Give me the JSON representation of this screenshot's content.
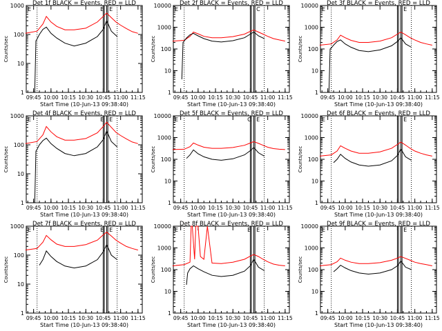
{
  "chart_data": [
    {
      "type": "line",
      "title": "Det 1f BLACK = Events, RED = LLD",
      "xlabel": "Start Time (10-Jun-13 09:38:40)",
      "ylabel": "Counts/sec",
      "yscale": "log",
      "ylim": [
        1,
        1000
      ],
      "y_ticks": [
        "1",
        "10",
        "100",
        "1000"
      ],
      "x_ticks": [
        "09:45",
        "10:00",
        "10:15",
        "10:30",
        "10:45",
        "11:00",
        "11:15"
      ],
      "flags": [
        "E",
        "E",
        "E"
      ],
      "series": [
        {
          "color": "#ff0000",
          "x": [
            "09:38",
            "09:48",
            "09:53",
            "09:56",
            "10:00",
            "10:05",
            "10:12",
            "10:20",
            "10:30",
            "10:40",
            "10:45",
            "10:48",
            "10:52",
            "10:56",
            "11:00",
            "11:05",
            "11:10",
            "11:15"
          ],
          "y": [
            110,
            130,
            230,
            420,
            270,
            190,
            145,
            145,
            165,
            270,
            420,
            550,
            380,
            270,
            210,
            160,
            125,
            110
          ]
        },
        {
          "color": "#000000",
          "x": [
            "09:46",
            "09:47",
            "09:48",
            "09:50",
            "09:53",
            "09:56",
            "10:00",
            "10:05",
            "10:12",
            "10:20",
            "10:30",
            "10:40",
            "10:45",
            "10:48",
            "10:52",
            "10:57"
          ],
          "y": [
            1,
            60,
            70,
            100,
            150,
            180,
            110,
            75,
            50,
            40,
            50,
            85,
            150,
            300,
            130,
            85
          ]
        }
      ]
    },
    {
      "type": "line",
      "title": "Det 2f BLACK = Events, RED = LLD",
      "xlabel": "Start Time (10-Jun-13 09:38:40)",
      "ylabel": "Counts/sec",
      "yscale": "log",
      "ylim": [
        1,
        10000
      ],
      "y_ticks": [
        "1",
        "10",
        "100",
        "1000",
        "10000"
      ],
      "x_ticks": [
        "09:45",
        "10:00",
        "10:15",
        "10:30",
        "10:45",
        "11:00",
        "11:15"
      ],
      "flags": [
        "E",
        "C"
      ],
      "series": [
        {
          "color": "#ff0000",
          "x": [
            "09:38",
            "09:48",
            "09:53",
            "09:56",
            "10:00",
            "10:05",
            "10:12",
            "10:20",
            "10:30",
            "10:40",
            "10:45",
            "10:48",
            "10:52",
            "10:56",
            "11:00",
            "11:05",
            "11:10",
            "11:15"
          ],
          "y": [
            230,
            250,
            380,
            600,
            500,
            380,
            330,
            330,
            370,
            480,
            650,
            750,
            600,
            480,
            380,
            300,
            260,
            230
          ]
        },
        {
          "color": "#000000",
          "x": [
            "09:46",
            "09:47",
            "09:48",
            "09:50",
            "09:53",
            "09:56",
            "10:00",
            "10:05",
            "10:12",
            "10:20",
            "10:30",
            "10:40",
            "10:45",
            "10:48",
            "10:52",
            "10:57"
          ],
          "y": [
            4,
            200,
            230,
            320,
            450,
            520,
            400,
            300,
            230,
            210,
            240,
            330,
            480,
            600,
            400,
            300
          ]
        }
      ]
    },
    {
      "type": "line",
      "title": "Det 3f BLACK = Events, RED = LLD",
      "xlabel": "Start Time (10-Jun-13 09:38:40)",
      "ylabel": "Counts/sec",
      "yscale": "log",
      "ylim": [
        1,
        10000
      ],
      "y_ticks": [
        "1",
        "10",
        "100",
        "1000",
        "10000"
      ],
      "x_ticks": [
        "09:45",
        "10:00",
        "10:15",
        "10:30",
        "10:45",
        "11:00",
        "11:15"
      ],
      "flags": [
        "E",
        "E"
      ],
      "series": [
        {
          "color": "#ff0000",
          "x": [
            "09:38",
            "09:48",
            "09:53",
            "09:56",
            "10:00",
            "10:05",
            "10:12",
            "10:20",
            "10:30",
            "10:40",
            "10:45",
            "10:48",
            "10:52",
            "10:56",
            "11:00",
            "11:05",
            "11:10",
            "11:15"
          ],
          "y": [
            150,
            170,
            260,
            430,
            330,
            250,
            200,
            200,
            230,
            330,
            480,
            600,
            450,
            330,
            260,
            200,
            170,
            150
          ]
        },
        {
          "color": "#000000",
          "x": [
            "09:46",
            "09:47",
            "09:48",
            "09:50",
            "09:53",
            "09:56",
            "10:00",
            "10:05",
            "10:12",
            "10:20",
            "10:30",
            "10:40",
            "10:45",
            "10:48",
            "10:52",
            "10:57"
          ],
          "y": [
            1,
            100,
            110,
            150,
            220,
            260,
            170,
            120,
            85,
            75,
            90,
            140,
            220,
            330,
            170,
            120
          ]
        }
      ]
    },
    {
      "type": "line",
      "title": "Det 4f BLACK = Events, RED = LLD",
      "xlabel": "Start Time (10-Jun-13 09:38:40)",
      "ylabel": "Counts/sec",
      "yscale": "log",
      "ylim": [
        1,
        1000
      ],
      "y_ticks": [
        "1",
        "10",
        "100",
        "1000"
      ],
      "x_ticks": [
        "09:45",
        "10:00",
        "10:15",
        "10:30",
        "10:45",
        "11:00",
        "11:15"
      ],
      "flags": [
        "E",
        "E",
        "E"
      ],
      "series": [
        {
          "color": "#ff0000",
          "x": [
            "09:38",
            "09:48",
            "09:53",
            "09:56",
            "10:00",
            "10:05",
            "10:12",
            "10:20",
            "10:30",
            "10:40",
            "10:45",
            "10:48",
            "10:52",
            "10:56",
            "11:00",
            "11:05",
            "11:10",
            "11:15"
          ],
          "y": [
            110,
            130,
            220,
            430,
            280,
            190,
            145,
            145,
            165,
            260,
            430,
            600,
            400,
            270,
            210,
            160,
            125,
            110
          ]
        },
        {
          "color": "#000000",
          "x": [
            "09:46",
            "09:47",
            "09:48",
            "09:50",
            "09:53",
            "09:56",
            "10:00",
            "10:05",
            "10:12",
            "10:20",
            "10:30",
            "10:40",
            "10:45",
            "10:48",
            "10:52",
            "10:57"
          ],
          "y": [
            1,
            60,
            70,
            100,
            140,
            170,
            110,
            75,
            50,
            42,
            50,
            85,
            150,
            300,
            130,
            85
          ]
        }
      ]
    },
    {
      "type": "line",
      "title": "Det 5f BLACK = Events, RED = LLD",
      "xlabel": "Start Time (10-Jun-13 09:38:40)",
      "ylabel": "Counts/sec",
      "yscale": "log",
      "ylim": [
        1,
        10000
      ],
      "y_ticks": [
        "1",
        "10",
        "100",
        "1000",
        "10000"
      ],
      "x_ticks": [
        "09:45",
        "10:00",
        "10:15",
        "10:30",
        "10:45",
        "11:00",
        "11:15"
      ],
      "flags": [
        "E",
        "E",
        "C"
      ],
      "series": [
        {
          "color": "#ff0000",
          "x": [
            "09:38",
            "09:48",
            "09:53",
            "09:56",
            "10:00",
            "10:05",
            "10:12",
            "10:20",
            "10:30",
            "10:40",
            "10:45",
            "10:48",
            "10:52",
            "10:56",
            "11:00",
            "11:05",
            "11:10",
            "11:15"
          ],
          "y": [
            280,
            290,
            380,
            560,
            450,
            360,
            320,
            320,
            350,
            440,
            560,
            650,
            540,
            440,
            360,
            310,
            290,
            280
          ]
        },
        {
          "color": "#000000",
          "x": [
            "09:50",
            "09:53",
            "09:56",
            "10:00",
            "10:05",
            "10:12",
            "10:20",
            "10:30",
            "10:40",
            "10:45",
            "10:48",
            "10:52",
            "10:57"
          ],
          "y": [
            110,
            160,
            270,
            180,
            130,
            100,
            90,
            105,
            160,
            250,
            350,
            200,
            140
          ]
        }
      ]
    },
    {
      "type": "line",
      "title": "Det 6f BLACK = Events, RED = LLD",
      "xlabel": "Start Time (10-Jun-13 09:38:40)",
      "ylabel": "Counts/sec",
      "yscale": "log",
      "ylim": [
        1,
        10000
      ],
      "y_ticks": [
        "1",
        "10",
        "100",
        "1000",
        "10000"
      ],
      "x_ticks": [
        "09:45",
        "10:00",
        "10:15",
        "10:30",
        "10:45",
        "11:00",
        "11:15"
      ],
      "flags": [
        "E",
        "E"
      ],
      "series": [
        {
          "color": "#ff0000",
          "x": [
            "09:38",
            "09:48",
            "09:53",
            "09:56",
            "10:00",
            "10:05",
            "10:12",
            "10:20",
            "10:30",
            "10:40",
            "10:45",
            "10:48",
            "10:52",
            "10:56",
            "11:00",
            "11:05",
            "11:10",
            "11:15"
          ],
          "y": [
            140,
            160,
            240,
            420,
            320,
            240,
            190,
            190,
            220,
            320,
            480,
            620,
            450,
            320,
            240,
            190,
            160,
            140
          ]
        },
        {
          "color": "#000000",
          "x": [
            "09:50",
            "09:53",
            "09:56",
            "10:00",
            "10:05",
            "10:12",
            "10:20",
            "10:30",
            "10:40",
            "10:45",
            "10:48",
            "10:52",
            "10:57"
          ],
          "y": [
            70,
            100,
            170,
            110,
            75,
            55,
            48,
            55,
            85,
            150,
            300,
            130,
            90
          ]
        }
      ]
    },
    {
      "type": "line",
      "title": "Det 7f BLACK = Events, RED = LLD",
      "xlabel": "Start Time (10-Jun-13 09:38:40)",
      "ylabel": "Counts/sec",
      "yscale": "log",
      "ylim": [
        1,
        1000
      ],
      "y_ticks": [
        "1",
        "10",
        "100",
        "1000"
      ],
      "x_ticks": [
        "09:45",
        "10:00",
        "10:15",
        "10:30",
        "10:45",
        "11:00",
        "11:15"
      ],
      "flags": [
        "E",
        "E",
        "E"
      ],
      "series": [
        {
          "color": "#ff0000",
          "x": [
            "09:38",
            "09:48",
            "09:53",
            "09:56",
            "10:00",
            "10:05",
            "10:12",
            "10:20",
            "10:30",
            "10:40",
            "10:45",
            "10:48",
            "10:52",
            "10:56",
            "11:00",
            "11:05",
            "11:10",
            "11:15"
          ],
          "y": [
            150,
            170,
            280,
            480,
            340,
            240,
            200,
            200,
            230,
            330,
            500,
            620,
            460,
            330,
            260,
            200,
            170,
            150
          ]
        },
        {
          "color": "#000000",
          "x": [
            "09:50",
            "09:53",
            "09:56",
            "10:00",
            "10:05",
            "10:12",
            "10:20",
            "10:30",
            "10:40",
            "10:45",
            "10:48",
            "10:52",
            "10:57"
          ],
          "y": [
            45,
            70,
            140,
            90,
            60,
            42,
            36,
            42,
            70,
            130,
            230,
            100,
            70
          ]
        }
      ]
    },
    {
      "type": "line",
      "title": "Det 8f BLACK = Events, RED = LLD",
      "xlabel": "Start Time (10-Jun-13 09:38:40)",
      "ylabel": "Counts/sec",
      "yscale": "log",
      "ylim": [
        1,
        10000
      ],
      "y_ticks": [
        "1",
        "10",
        "100",
        "1000",
        "10000"
      ],
      "x_ticks": [
        "09:45",
        "10:00",
        "10:15",
        "10:30",
        "10:45",
        "11:00",
        "11:15"
      ],
      "flags": [
        "E",
        "E",
        "E"
      ],
      "series": [
        {
          "color": "#ff0000",
          "x": [
            "09:38",
            "09:48",
            "09:53",
            "09:54",
            "09:55",
            "09:57",
            "09:58",
            "10:00",
            "10:02",
            "10:05",
            "10:08",
            "10:12",
            "10:20",
            "10:30",
            "10:40",
            "10:45",
            "10:48",
            "10:52",
            "10:56",
            "11:00",
            "11:05",
            "11:10",
            "11:15"
          ],
          "y": [
            150,
            170,
            220,
            10000,
            10000,
            300,
            10000,
            10000,
            400,
            300,
            10000,
            200,
            190,
            220,
            300,
            420,
            500,
            400,
            300,
            230,
            180,
            160,
            150
          ]
        },
        {
          "color": "#000000",
          "x": [
            "09:50",
            "09:51",
            "09:53",
            "09:56",
            "10:00",
            "10:05",
            "10:12",
            "10:20",
            "10:30",
            "10:40",
            "10:45",
            "10:48",
            "10:52",
            "10:57"
          ],
          "y": [
            20,
            70,
            110,
            150,
            110,
            80,
            55,
            48,
            55,
            85,
            150,
            300,
            130,
            90
          ]
        }
      ]
    },
    {
      "type": "line",
      "title": "Det 9f BLACK = Events, RED = LLD",
      "xlabel": "Start Time (10-Jun-13 09:38:40)",
      "ylabel": "Counts/sec",
      "yscale": "log",
      "ylim": [
        1,
        10000
      ],
      "y_ticks": [
        "1",
        "10",
        "100",
        "1000",
        "10000"
      ],
      "x_ticks": [
        "09:45",
        "10:00",
        "10:15",
        "10:30",
        "10:45",
        "11:00",
        "11:15"
      ],
      "flags": [
        "E",
        "E"
      ],
      "series": [
        {
          "color": "#ff0000",
          "x": [
            "09:38",
            "09:48",
            "09:53",
            "09:56",
            "10:00",
            "10:05",
            "10:12",
            "10:20",
            "10:30",
            "10:40",
            "10:45",
            "10:48",
            "10:52",
            "10:56",
            "11:00",
            "11:05",
            "11:10",
            "11:15"
          ],
          "y": [
            150,
            170,
            230,
            340,
            270,
            220,
            190,
            190,
            210,
            270,
            340,
            400,
            330,
            270,
            220,
            190,
            170,
            150
          ]
        },
        {
          "color": "#000000",
          "x": [
            "09:50",
            "09:53",
            "09:56",
            "10:00",
            "10:05",
            "10:12",
            "10:20",
            "10:30",
            "10:40",
            "10:45",
            "10:48",
            "10:52",
            "10:57"
          ],
          "y": [
            80,
            110,
            160,
            120,
            90,
            70,
            62,
            70,
            100,
            150,
            250,
            130,
            100
          ]
        }
      ]
    }
  ]
}
